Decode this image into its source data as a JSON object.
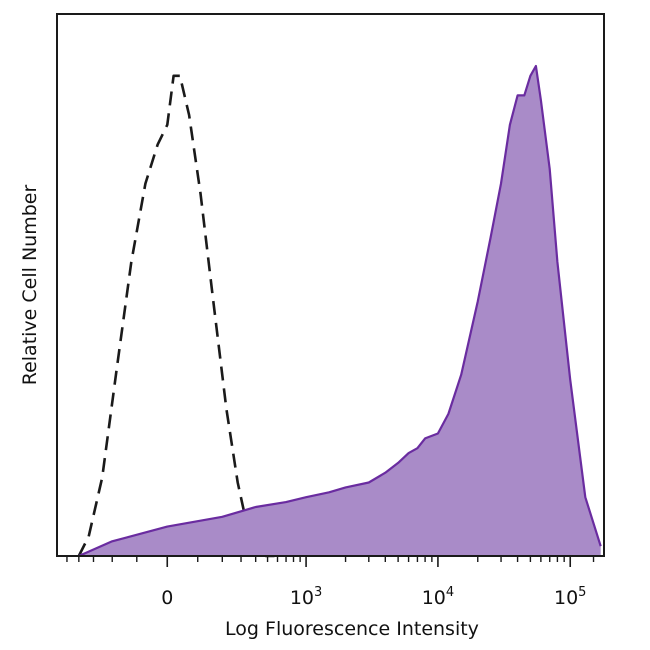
{
  "chart_data": {
    "type": "area",
    "title": "",
    "xlabel": "Log Fluorescence Intensity",
    "ylabel": "Relative Cell Number",
    "x_scale": "biexponential (logicle)",
    "xlim": [
      -600,
      180000
    ],
    "ylim": [
      0,
      1.0
    ],
    "grid": false,
    "legend": "none",
    "x_ticks": [
      {
        "label_base": "0",
        "label_exp": "",
        "value": 0
      },
      {
        "label_base": "10",
        "label_exp": "3",
        "value": 1000
      },
      {
        "label_base": "10",
        "label_exp": "4",
        "value": 10000
      },
      {
        "label_base": "10",
        "label_exp": "5",
        "value": 100000
      }
    ],
    "series": [
      {
        "style": "dashed-outline",
        "color": "#1a1a1a",
        "x": [
          -400,
          -330,
          -250,
          -180,
          -120,
          -70,
          -30,
          0,
          20,
          40,
          70,
          110,
          160,
          220,
          280,
          340,
          400,
          460,
          560,
          700,
          900
        ],
        "y": [
          0.0,
          0.04,
          0.16,
          0.38,
          0.6,
          0.76,
          0.84,
          0.88,
          0.98,
          0.98,
          0.9,
          0.74,
          0.52,
          0.3,
          0.15,
          0.06,
          0.02,
          0.0,
          0.0,
          0.01,
          0.0
        ]
      },
      {
        "style": "filled",
        "color": "#6a2ca0",
        "fill": "#a98bc8",
        "x": [
          -400,
          -200,
          0,
          200,
          400,
          700,
          1000,
          1500,
          2000,
          3000,
          4000,
          5000,
          6000,
          7000,
          8000,
          10000,
          12000,
          15000,
          20000,
          25000,
          30000,
          35000,
          40000,
          45000,
          50000,
          55000,
          60000,
          70000,
          80000,
          100000,
          130000,
          170000
        ],
        "y": [
          0.0,
          0.03,
          0.06,
          0.08,
          0.1,
          0.11,
          0.12,
          0.13,
          0.14,
          0.15,
          0.17,
          0.19,
          0.21,
          0.22,
          0.24,
          0.25,
          0.29,
          0.37,
          0.52,
          0.65,
          0.76,
          0.88,
          0.94,
          0.94,
          0.98,
          1.0,
          0.93,
          0.79,
          0.6,
          0.36,
          0.12,
          0.02
        ]
      }
    ]
  }
}
